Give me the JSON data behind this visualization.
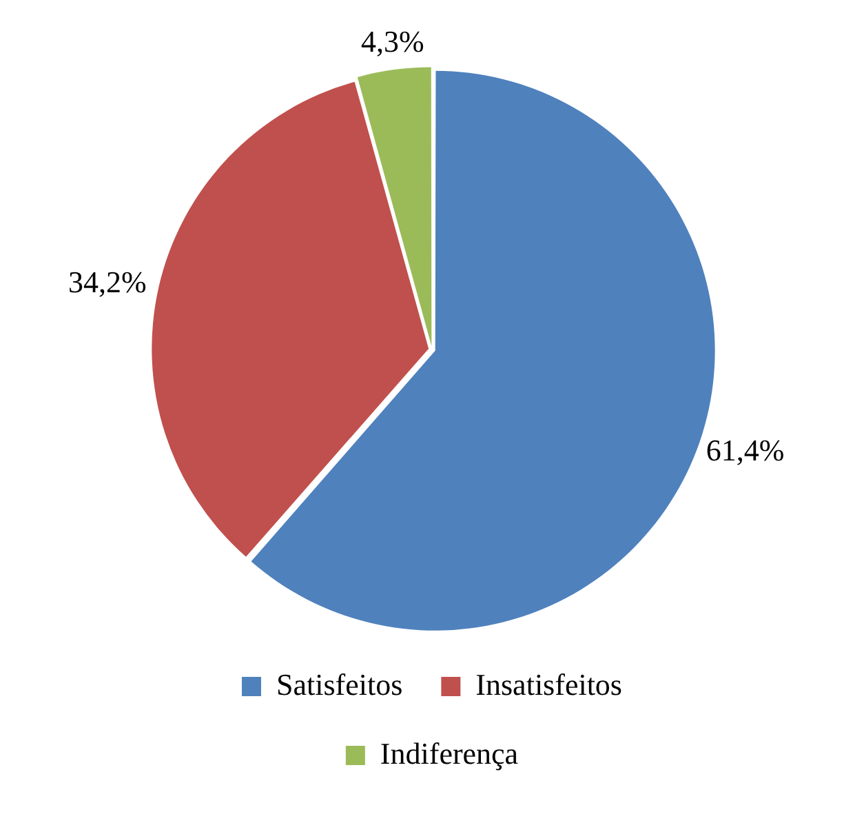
{
  "chart_data": {
    "type": "pie",
    "categories": [
      "Satisfeitos",
      "Insatisfeitos",
      "Indiferença"
    ],
    "values": [
      61.4,
      34.2,
      4.3
    ],
    "colors": [
      "#4f81bd",
      "#c0504d",
      "#9bbb59"
    ],
    "value_labels": [
      "61,4%",
      "34,2%",
      "4,3%"
    ],
    "legend": "bottom"
  }
}
